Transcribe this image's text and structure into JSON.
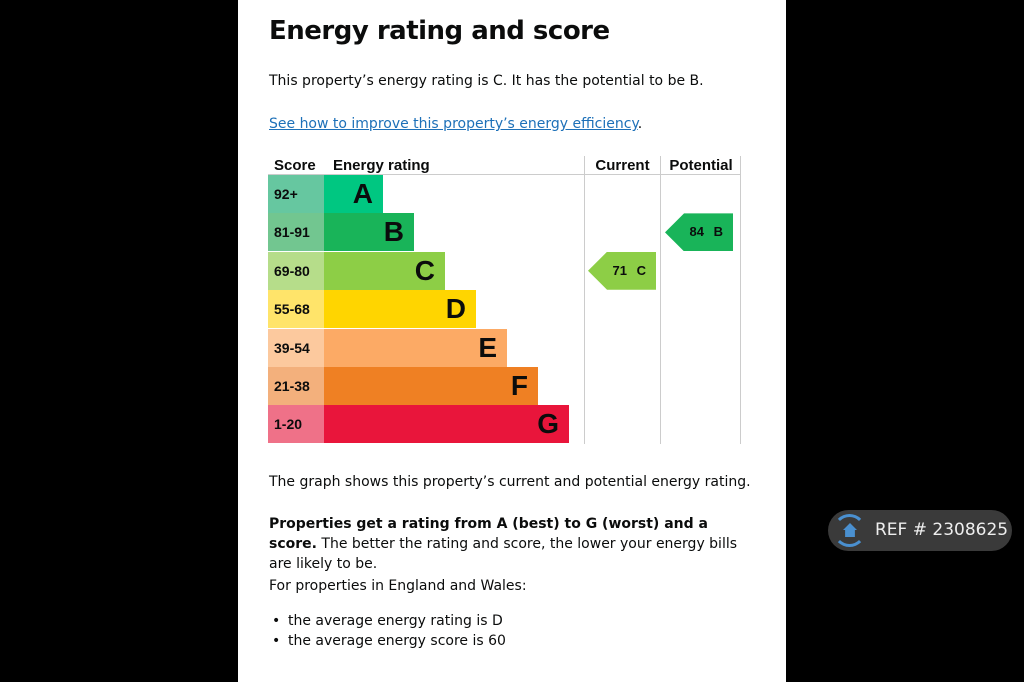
{
  "title": "Energy rating and score",
  "intro": "This property’s energy rating is C. It has the potential to be B.",
  "link": "See how to improve this property’s energy efficiency",
  "link_suffix": ".",
  "chart": {
    "headers": {
      "score": "Score",
      "rating": "Energy rating",
      "current": "Current",
      "potential": "Potential"
    },
    "bands": [
      {
        "score": "92+",
        "letter": "A",
        "color": "#00c781",
        "light": "#66c7a0"
      },
      {
        "score": "81-91",
        "letter": "B",
        "color": "#19b459",
        "light": "#72c690"
      },
      {
        "score": "69-80",
        "letter": "C",
        "color": "#8dce46",
        "light": "#b6dd8a"
      },
      {
        "score": "55-68",
        "letter": "D",
        "color": "#ffd500",
        "light": "#ffe46a"
      },
      {
        "score": "39-54",
        "letter": "E",
        "color": "#fcaa65",
        "light": "#fcc99e"
      },
      {
        "score": "21-38",
        "letter": "F",
        "color": "#ef8023",
        "light": "#f3b07c"
      },
      {
        "score": "1-20",
        "letter": "G",
        "color": "#e9153b",
        "light": "#ef7188"
      }
    ],
    "current": {
      "label": "71 C",
      "band": 2
    },
    "potential": {
      "label": "84 B",
      "band": 1
    }
  },
  "graph_text": "The graph shows this property’s current and potential energy rating.",
  "bold_text": "Properties get a rating from A (best) to G (worst) and a score.",
  "rest_text": " The better the rating and score, the lower your energy bills are likely to be.",
  "england": "For properties in England and Wales:",
  "bullets": [
    "the average energy rating is D",
    "the average energy score is 60"
  ],
  "ref": "REF # 2308625"
}
